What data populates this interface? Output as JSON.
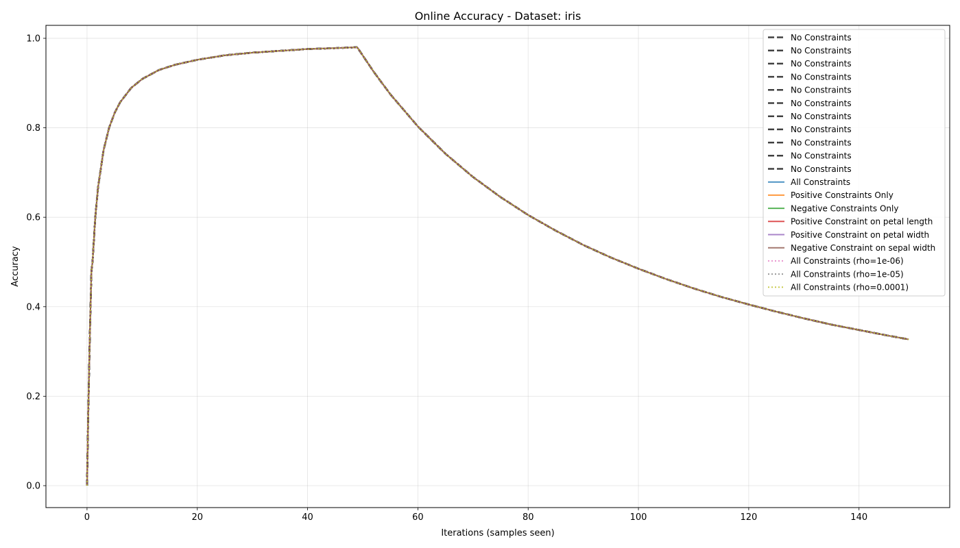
{
  "chart_data": {
    "type": "line",
    "title": "Online Accuracy - Dataset: iris",
    "xlabel": "Iterations (samples seen)",
    "ylabel": "Accuracy",
    "xlim": [
      -7.45,
      156.45
    ],
    "ylim": [
      -0.049,
      1.029
    ],
    "xticks": [
      0,
      20,
      40,
      60,
      80,
      100,
      120,
      140
    ],
    "yticks": [
      0.0,
      0.2,
      0.4,
      0.6,
      0.8,
      1.0
    ],
    "grid": true,
    "legend_position": "upper right",
    "x": [
      0,
      0.2,
      0.5,
      0.8,
      1,
      1.5,
      2,
      3,
      4,
      5,
      6,
      8,
      10,
      13,
      16,
      20,
      25,
      30,
      35,
      40,
      45,
      49,
      52,
      55,
      60,
      65,
      70,
      75,
      80,
      85,
      90,
      95,
      100,
      105,
      110,
      115,
      120,
      125,
      130,
      135,
      140,
      145,
      149
    ],
    "y": [
      0.0,
      0.15,
      0.33,
      0.48,
      0.5,
      0.6,
      0.667,
      0.75,
      0.8,
      0.833,
      0.857,
      0.889,
      0.909,
      0.929,
      0.941,
      0.952,
      0.962,
      0.968,
      0.972,
      0.976,
      0.978,
      0.98,
      0.925,
      0.875,
      0.803,
      0.742,
      0.69,
      0.645,
      0.605,
      0.57,
      0.538,
      0.51,
      0.485,
      0.462,
      0.441,
      0.422,
      0.405,
      0.389,
      0.374,
      0.36,
      0.348,
      0.336,
      0.327
    ],
    "series": [
      {
        "name": "No Constraints",
        "color": "#404040",
        "style": "dashed"
      },
      {
        "name": "No Constraints",
        "color": "#404040",
        "style": "dashed"
      },
      {
        "name": "No Constraints",
        "color": "#404040",
        "style": "dashed"
      },
      {
        "name": "No Constraints",
        "color": "#404040",
        "style": "dashed"
      },
      {
        "name": "No Constraints",
        "color": "#404040",
        "style": "dashed"
      },
      {
        "name": "No Constraints",
        "color": "#404040",
        "style": "dashed"
      },
      {
        "name": "No Constraints",
        "color": "#404040",
        "style": "dashed"
      },
      {
        "name": "No Constraints",
        "color": "#404040",
        "style": "dashed"
      },
      {
        "name": "No Constraints",
        "color": "#404040",
        "style": "dashed"
      },
      {
        "name": "No Constraints",
        "color": "#404040",
        "style": "dashed"
      },
      {
        "name": "No Constraints",
        "color": "#404040",
        "style": "dashed"
      },
      {
        "name": "All Constraints",
        "color": "#1f77b4",
        "style": "solid"
      },
      {
        "name": "Positive Constraints Only",
        "color": "#ff7f0e",
        "style": "solid"
      },
      {
        "name": "Negative Constraints Only",
        "color": "#2ca02c",
        "style": "solid"
      },
      {
        "name": "Positive Constraint on petal length",
        "color": "#d62728",
        "style": "solid"
      },
      {
        "name": "Positive Constraint on petal width",
        "color": "#9467bd",
        "style": "solid"
      },
      {
        "name": "Negative Constraint on sepal width",
        "color": "#8c564b",
        "style": "solid"
      },
      {
        "name": "All Constraints (rho=1e-06)",
        "color": "#e377c2",
        "style": "dotted"
      },
      {
        "name": "All Constraints (rho=1e-05)",
        "color": "#7f7f7f",
        "style": "dotted"
      },
      {
        "name": "All Constraints (rho=0.0001)",
        "color": "#bcbd22",
        "style": "dotted"
      }
    ]
  }
}
